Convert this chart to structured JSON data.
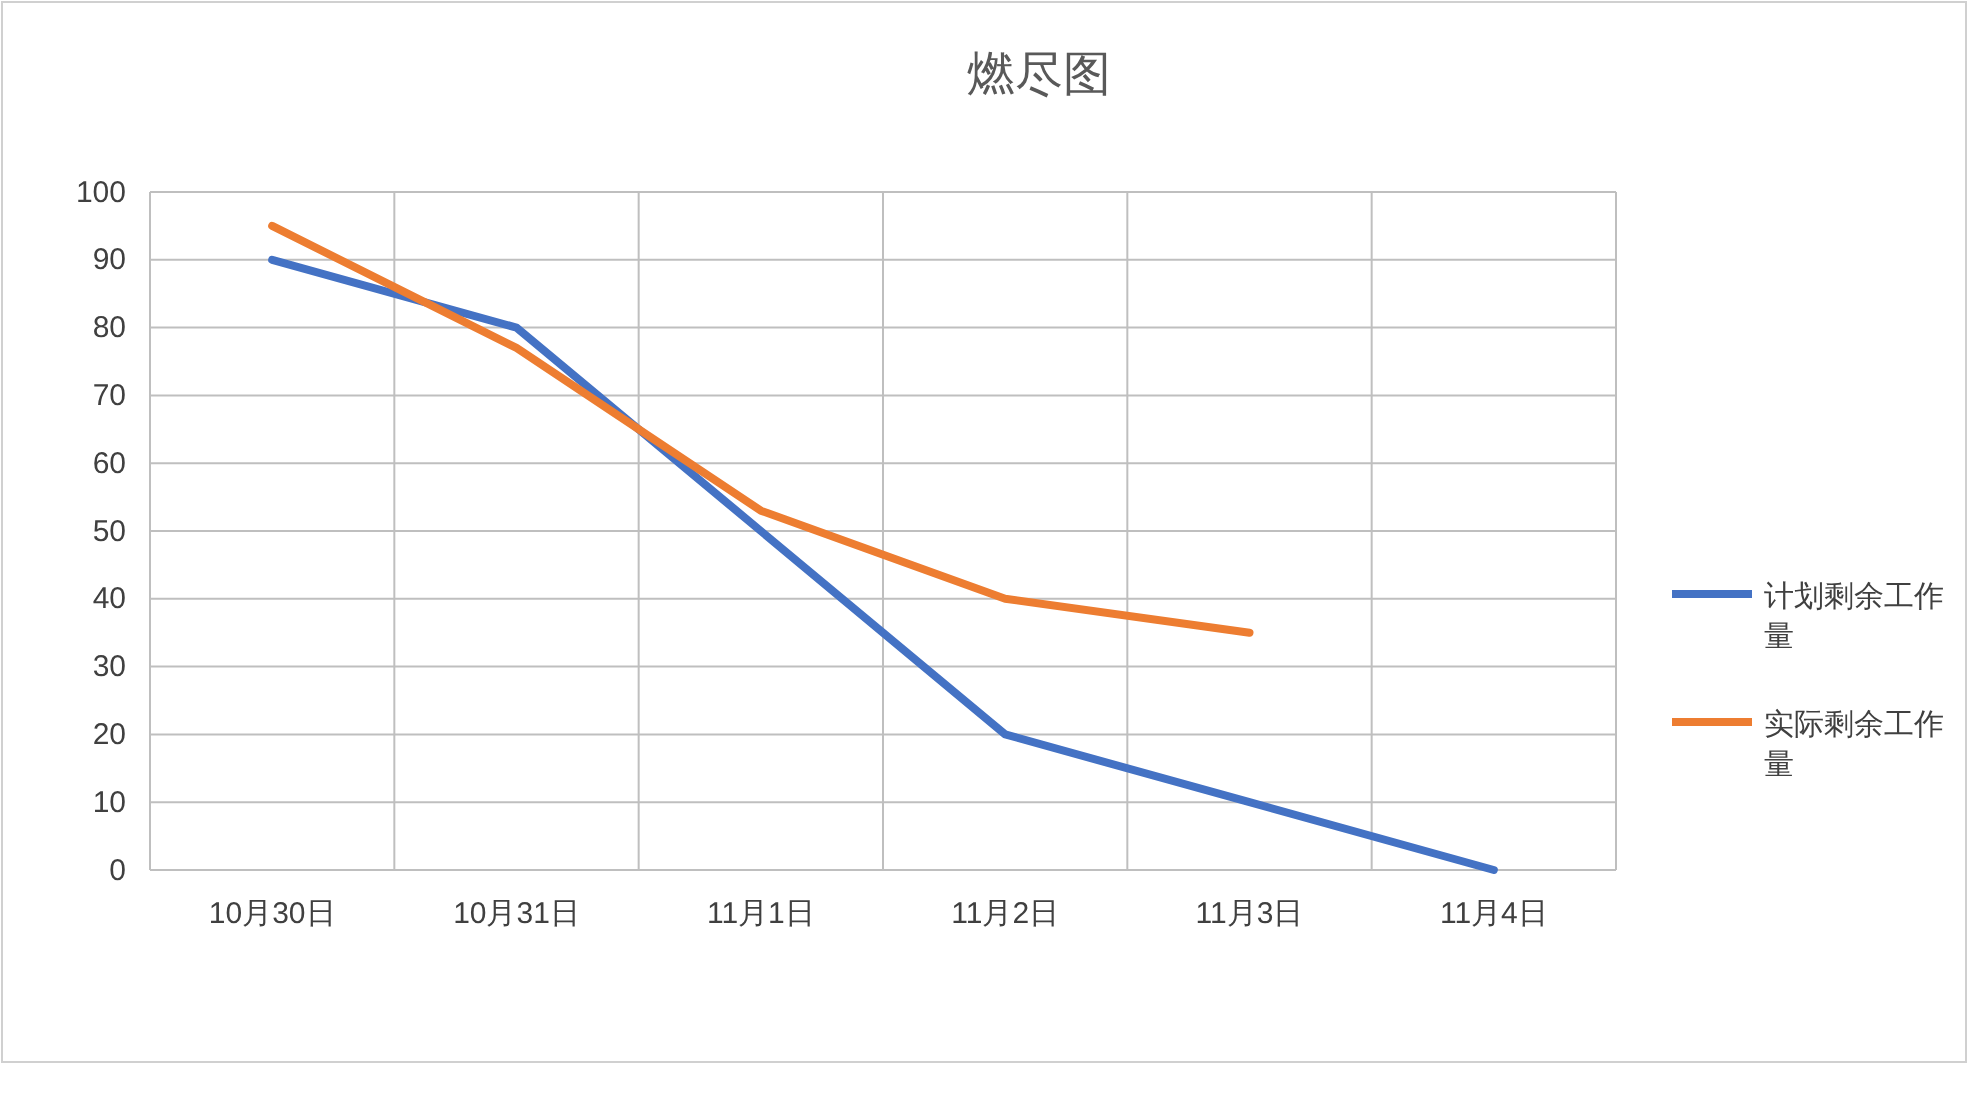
{
  "chart_data": {
    "type": "line",
    "title": "燃尽图",
    "categories": [
      "10月30日",
      "10月31日",
      "11月1日",
      "11月2日",
      "11月3日",
      "11月4日"
    ],
    "series": [
      {
        "name": "计划剩余工作量",
        "color": "#4472c4",
        "values": [
          90,
          80,
          50,
          20,
          10,
          0
        ]
      },
      {
        "name": "实际剩余工作量",
        "color": "#ed7d31",
        "values": [
          95,
          77,
          53,
          40,
          35,
          null
        ]
      }
    ],
    "ylim": [
      0,
      100
    ],
    "yticks": [
      0,
      10,
      20,
      30,
      40,
      50,
      60,
      70,
      80,
      90,
      100
    ],
    "grid": true,
    "legend": "right",
    "marker": "none",
    "line_style": "solid"
  }
}
